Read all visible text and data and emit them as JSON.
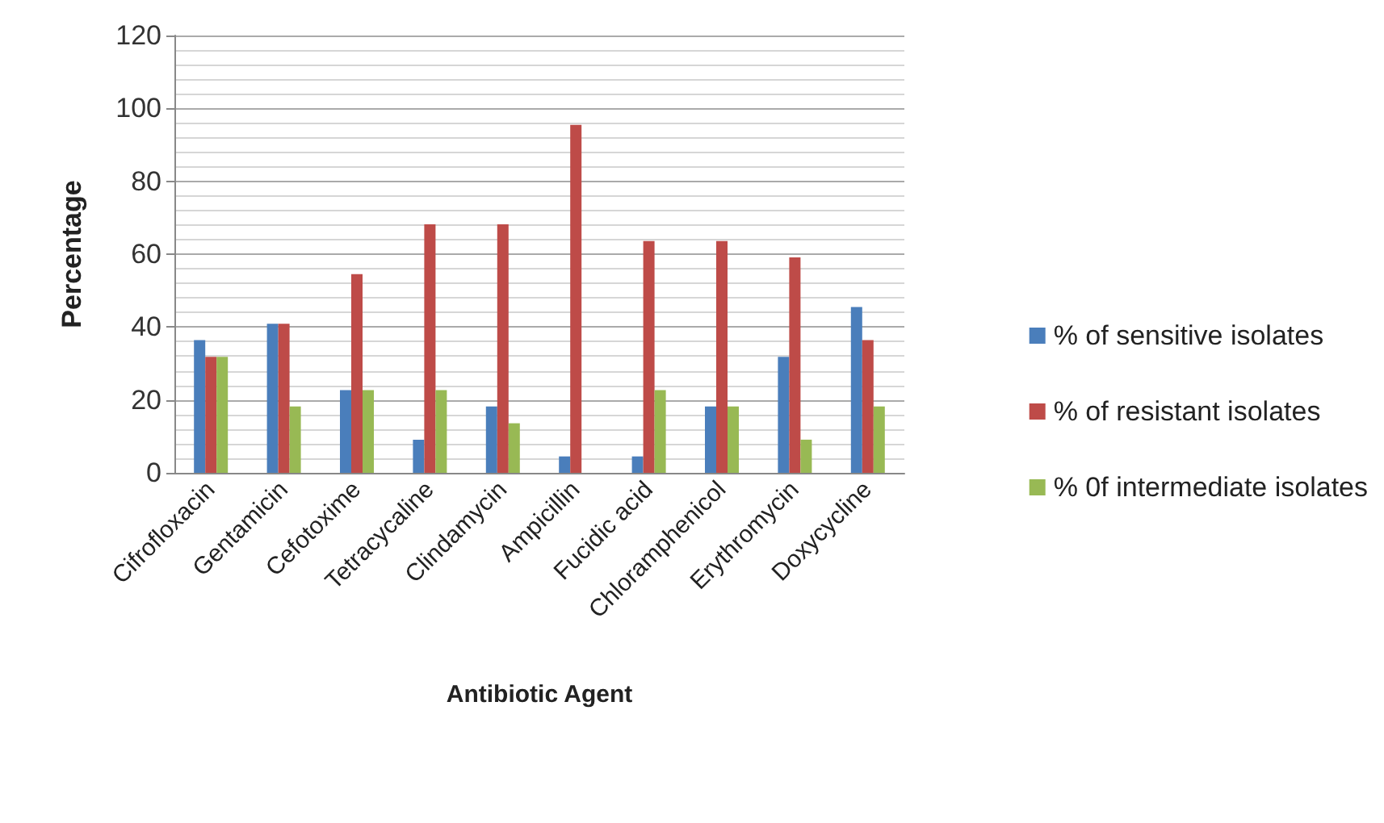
{
  "chart_data": {
    "type": "bar",
    "xlabel": "Antibiotic Agent",
    "ylabel": "Percentage",
    "categories": [
      "Cifrofloxacin",
      "Gentamicin",
      "Cefotoxime",
      "Tetracycaline",
      "Clindamycin",
      "Ampicillin",
      "Fucidic acid",
      "Chloramphenicol",
      "Erythromycin",
      "Doxycycline"
    ],
    "series": [
      {
        "name": "% of sensitive isolates",
        "color": "#4a7ebb",
        "values": [
          36.4,
          40.9,
          22.7,
          9.1,
          18.2,
          4.5,
          4.5,
          18.2,
          31.8,
          45.5
        ]
      },
      {
        "name": "% of resistant isolates",
        "color": "#be4b48",
        "values": [
          31.8,
          40.9,
          54.5,
          68.2,
          68.2,
          95.5,
          63.6,
          63.6,
          59.1,
          36.4
        ]
      },
      {
        "name": "% 0f intermediate isolates",
        "color": "#98b954",
        "values": [
          31.8,
          18.2,
          22.7,
          22.7,
          13.6,
          0,
          22.7,
          18.2,
          9.1,
          18.2
        ]
      }
    ],
    "ylim": [
      0,
      120
    ],
    "yticks": [
      0,
      20,
      40,
      60,
      80,
      100,
      120
    ],
    "grid": "y",
    "legend": "right"
  }
}
